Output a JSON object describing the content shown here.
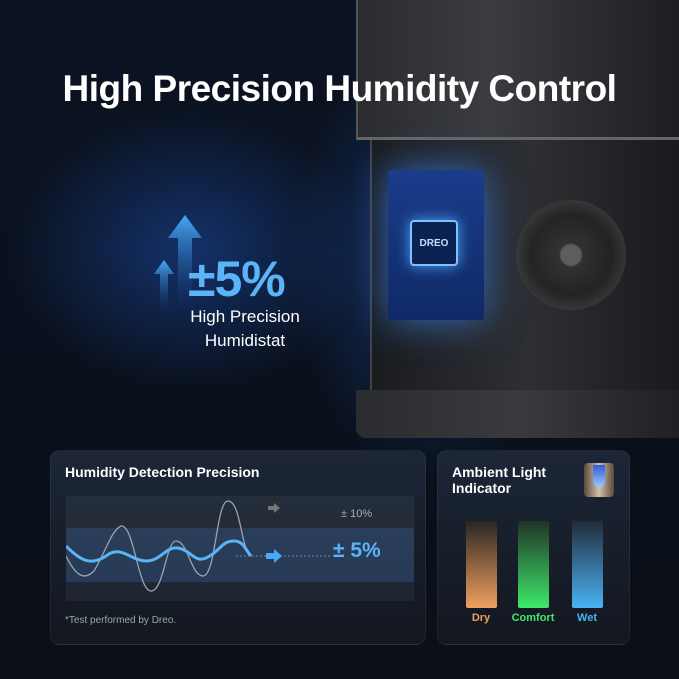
{
  "headline": "High Precision Humidity Control",
  "hero": {
    "value": "±5%",
    "line1": "High Precision",
    "line2": "Humidistat"
  },
  "device": {
    "chip_logo": "DREO"
  },
  "precision_panel": {
    "title": "Humidity Detection Precision",
    "standard_label": "± 10%",
    "dreo_label": "± 5%",
    "footnote": "*Test performed by Dreo."
  },
  "light_panel": {
    "title": "Ambient Light Indicator",
    "levels": [
      {
        "label": "Dry",
        "color": "#f0a060"
      },
      {
        "label": "Comfort",
        "color": "#3ee86a"
      },
      {
        "label": "Wet",
        "color": "#4ab2f5"
      }
    ]
  },
  "colors": {
    "accent": "#5cb4f8"
  }
}
